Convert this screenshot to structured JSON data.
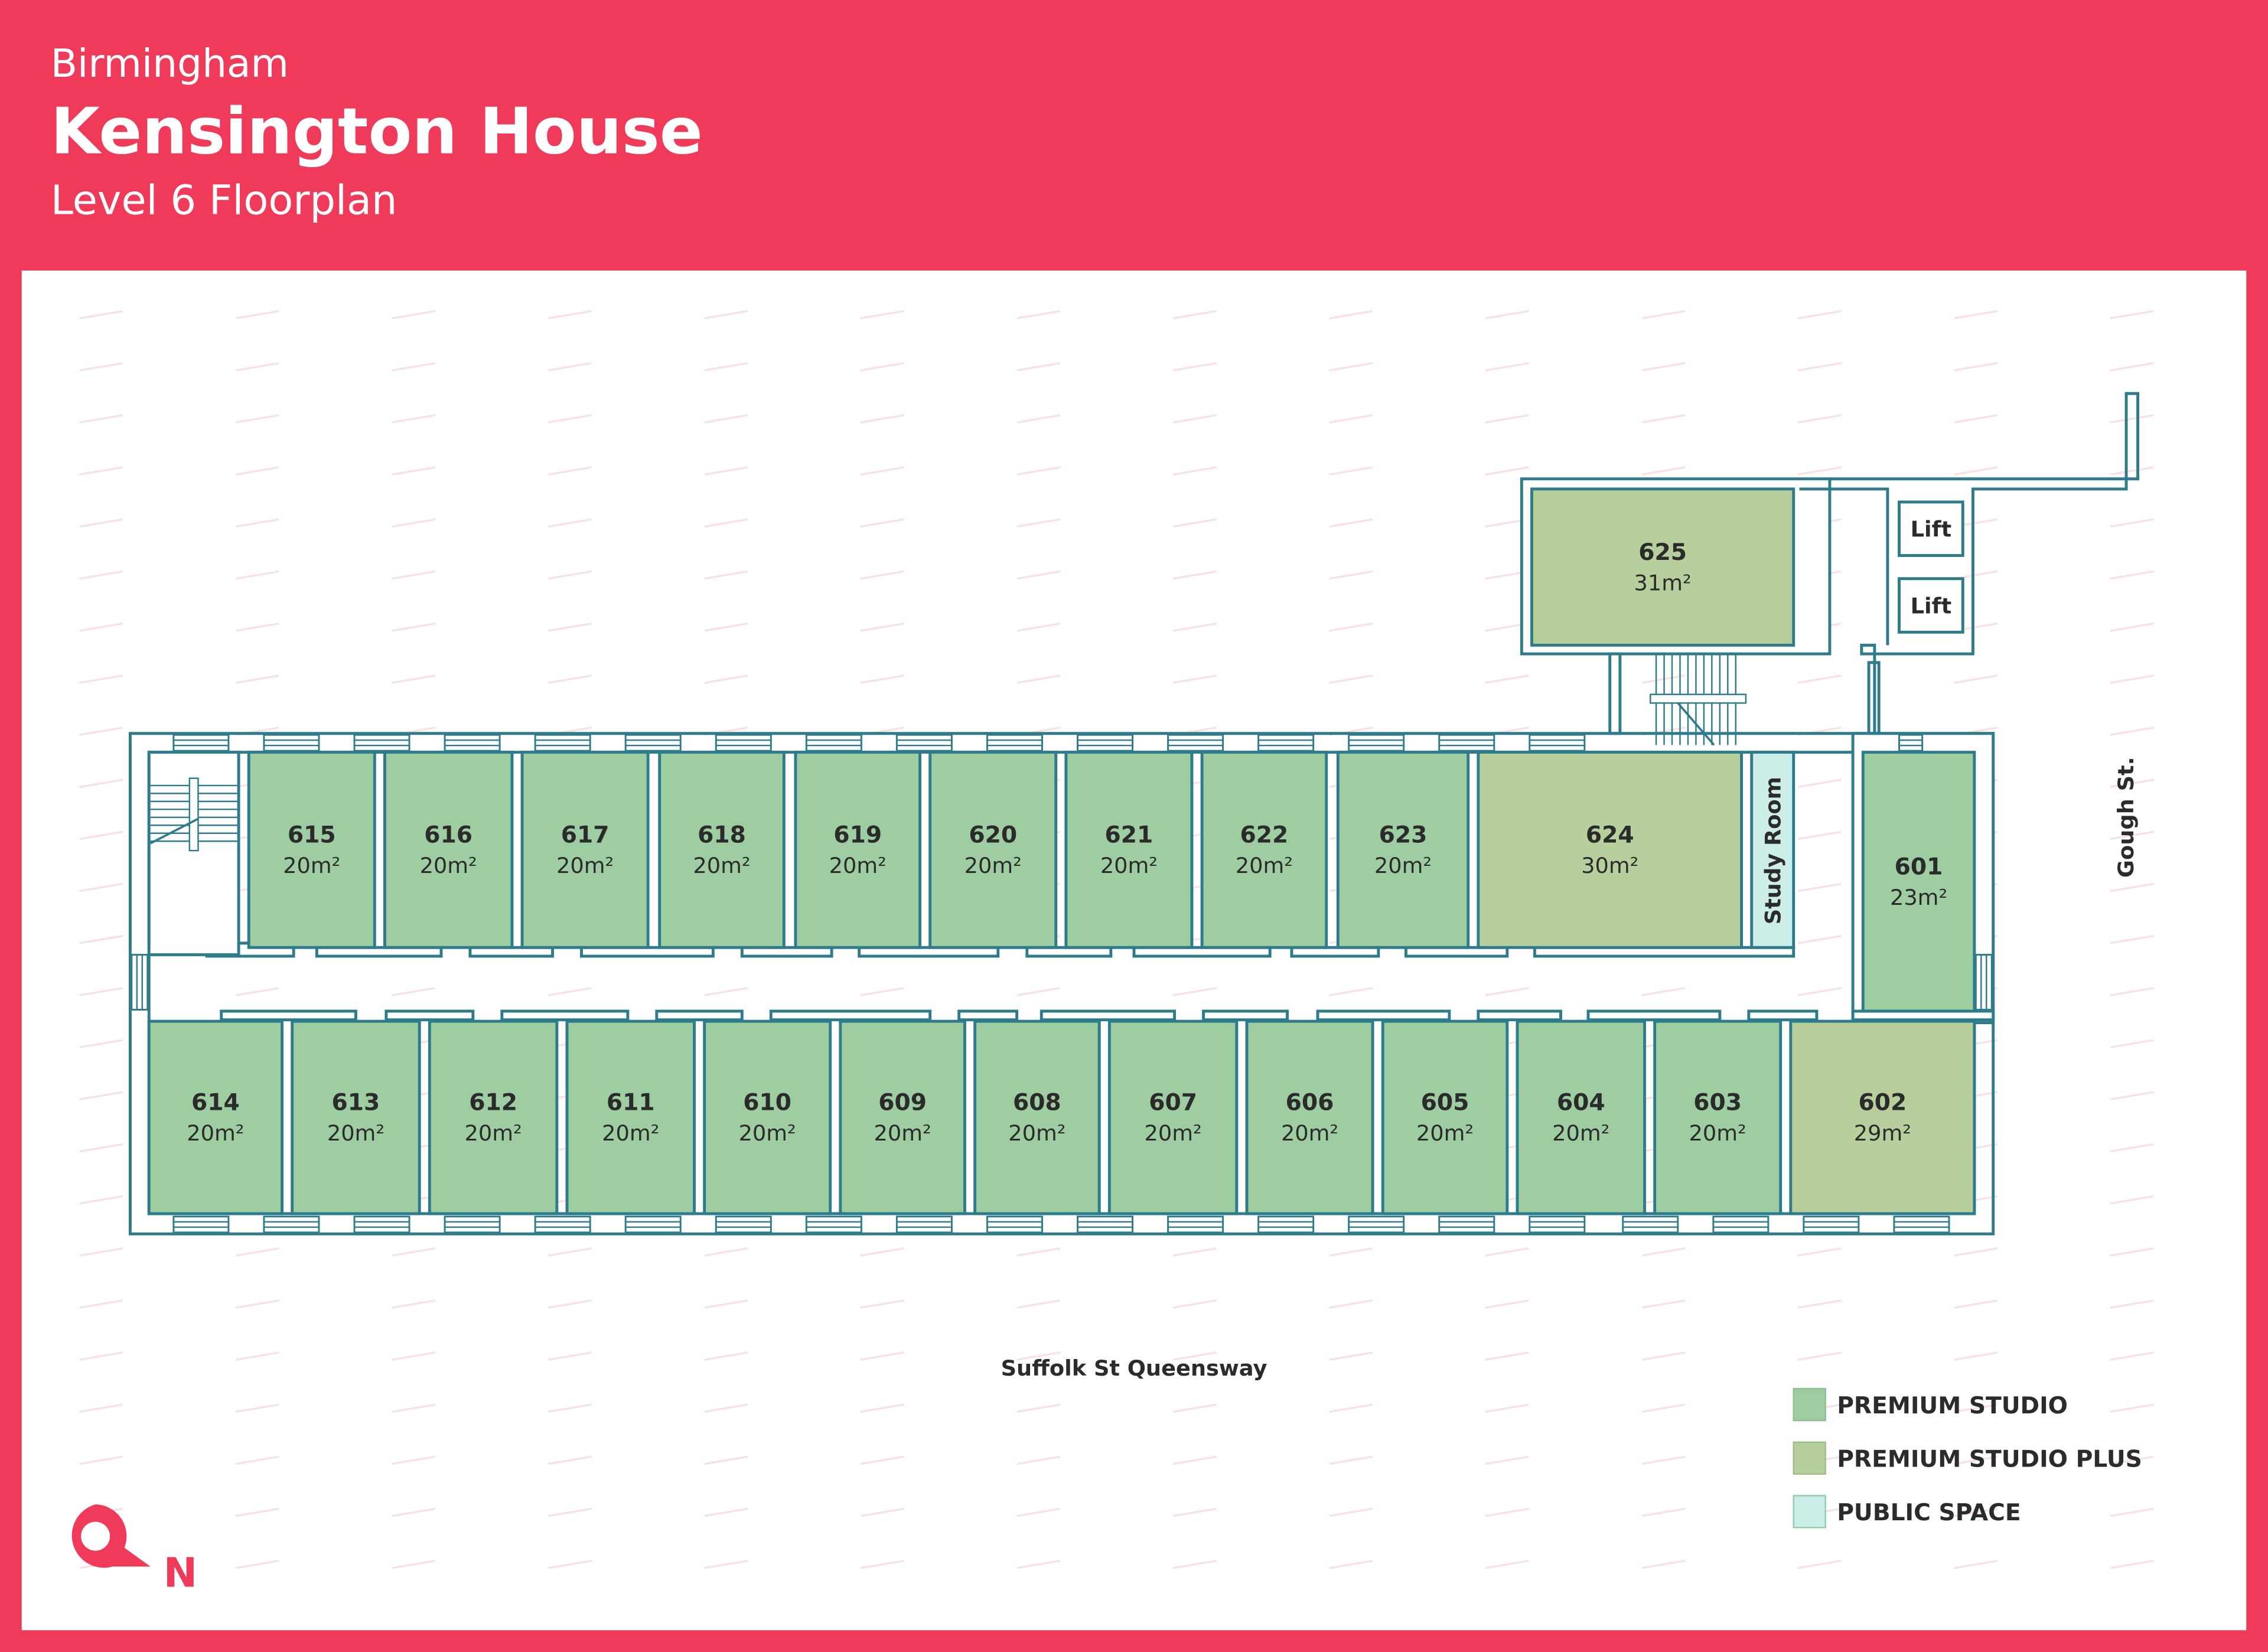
{
  "header": {
    "city": "Birmingham",
    "building": "Kensington House",
    "floor": "Level 6 Floorplan"
  },
  "colors": {
    "brand": "#F03A5A",
    "wall": "#2E7C8B",
    "premium_studio": "#9ECDA2",
    "premium_studio_plus": "#B7CF9D",
    "public_space": "#CDEEE8"
  },
  "rooms": [
    {
      "number": "601",
      "area": "23m²",
      "type": "premium_studio"
    },
    {
      "number": "602",
      "area": "29m²",
      "type": "premium_studio_plus"
    },
    {
      "number": "603",
      "area": "20m²",
      "type": "premium_studio"
    },
    {
      "number": "604",
      "area": "20m²",
      "type": "premium_studio"
    },
    {
      "number": "605",
      "area": "20m²",
      "type": "premium_studio"
    },
    {
      "number": "606",
      "area": "20m²",
      "type": "premium_studio"
    },
    {
      "number": "607",
      "area": "20m²",
      "type": "premium_studio"
    },
    {
      "number": "608",
      "area": "20m²",
      "type": "premium_studio"
    },
    {
      "number": "609",
      "area": "20m²",
      "type": "premium_studio"
    },
    {
      "number": "610",
      "area": "20m²",
      "type": "premium_studio"
    },
    {
      "number": "611",
      "area": "20m²",
      "type": "premium_studio"
    },
    {
      "number": "612",
      "area": "20m²",
      "type": "premium_studio"
    },
    {
      "number": "613",
      "area": "20m²",
      "type": "premium_studio"
    },
    {
      "number": "614",
      "area": "20m²",
      "type": "premium_studio"
    },
    {
      "number": "615",
      "area": "20m²",
      "type": "premium_studio"
    },
    {
      "number": "616",
      "area": "20m²",
      "type": "premium_studio"
    },
    {
      "number": "617",
      "area": "20m²",
      "type": "premium_studio"
    },
    {
      "number": "618",
      "area": "20m²",
      "type": "premium_studio"
    },
    {
      "number": "619",
      "area": "20m²",
      "type": "premium_studio"
    },
    {
      "number": "620",
      "area": "20m²",
      "type": "premium_studio"
    },
    {
      "number": "621",
      "area": "20m²",
      "type": "premium_studio"
    },
    {
      "number": "622",
      "area": "20m²",
      "type": "premium_studio"
    },
    {
      "number": "623",
      "area": "20m²",
      "type": "premium_studio"
    },
    {
      "number": "624",
      "area": "30m²",
      "type": "premium_studio_plus"
    },
    {
      "number": "625",
      "area": "31m²",
      "type": "premium_studio_plus"
    }
  ],
  "study_room": {
    "label": "Study Room",
    "type": "public_space"
  },
  "lifts": [
    "Lift",
    "Lift"
  ],
  "streets": {
    "south": "Suffolk St Queensway",
    "east": "Gough St."
  },
  "legend": [
    {
      "label": "PREMIUM STUDIO",
      "type": "premium_studio"
    },
    {
      "label": "PREMIUM STUDIO PLUS",
      "type": "premium_studio_plus"
    },
    {
      "label": "PUBLIC SPACE",
      "type": "public_space"
    }
  ],
  "compass": {
    "label": "N",
    "icon": "location-pin-north-icon"
  }
}
